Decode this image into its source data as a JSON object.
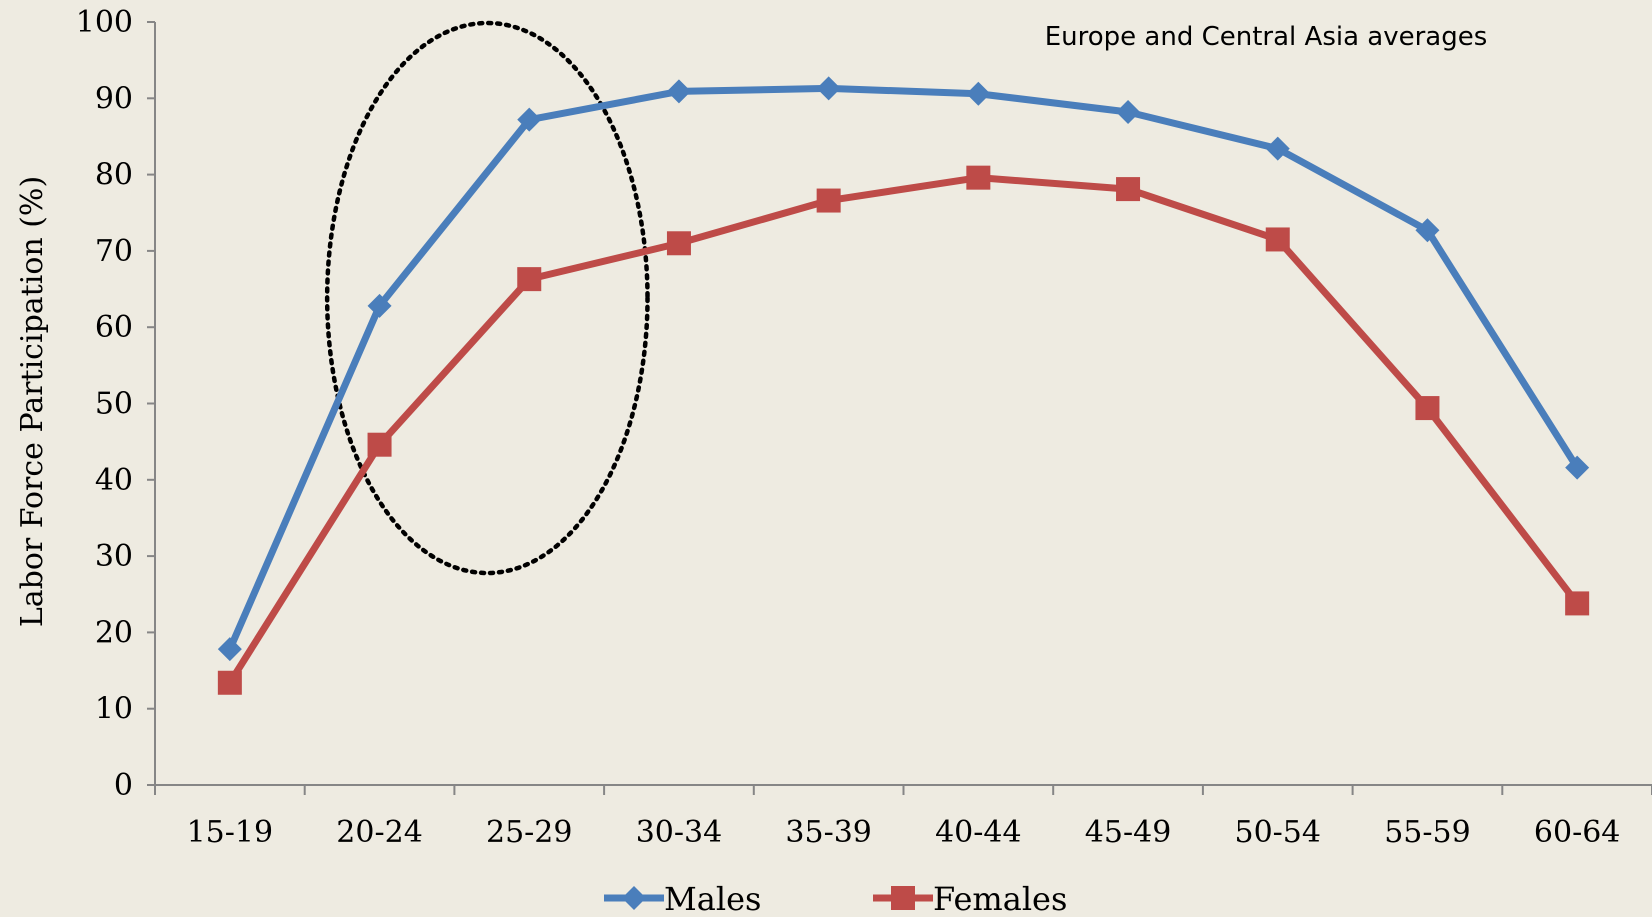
{
  "chart_data": {
    "type": "line",
    "title": "",
    "annotation": "Europe and Central Asia averages",
    "xlabel": "",
    "ylabel": "Labor Force Participation (%)",
    "ylim": [
      0,
      100
    ],
    "yticks": [
      "0",
      "10",
      "20",
      "30",
      "40",
      "50",
      "60",
      "70",
      "80",
      "90",
      "100"
    ],
    "categories": [
      "15-19",
      "20-24",
      "25-29",
      "30-34",
      "35-39",
      "40-44",
      "45-49",
      "50-54",
      "55-59",
      "60-64"
    ],
    "series": [
      {
        "name": "Males",
        "color": "#4A7EBB",
        "marker": "diamond",
        "values": [
          17.8,
          62.8,
          87.2,
          90.9,
          91.3,
          90.6,
          88.2,
          83.4,
          72.7,
          41.6
        ]
      },
      {
        "name": "Females",
        "color": "#BE4B48",
        "marker": "square",
        "values": [
          13.4,
          44.6,
          66.3,
          71.0,
          76.6,
          79.6,
          78.1,
          71.5,
          49.4,
          23.8
        ]
      }
    ],
    "highlight_categories": [
      "20-24",
      "25-29"
    ],
    "grid": false,
    "legend_position": "bottom"
  }
}
